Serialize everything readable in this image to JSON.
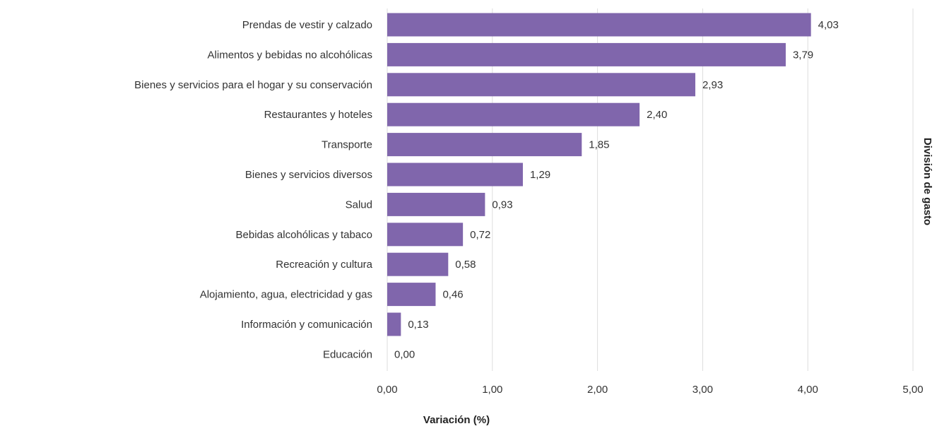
{
  "chart_data": {
    "type": "bar",
    "orientation": "horizontal",
    "categories": [
      "Prendas de vestir y calzado",
      "Alimentos y bebidas no alcohólicas",
      "Bienes y servicios para el hogar y su conservación",
      "Restaurantes y hoteles",
      "Transporte",
      "Bienes y servicios diversos",
      "Salud",
      "Bebidas alcohólicas y tabaco",
      "Recreación y cultura",
      "Alojamiento, agua, electricidad y gas",
      "Información y comunicación",
      "Educación"
    ],
    "values": [
      4.03,
      3.79,
      2.93,
      2.4,
      1.85,
      1.29,
      0.93,
      0.72,
      0.58,
      0.46,
      0.13,
      0.0
    ],
    "value_labels": [
      "4,03",
      "3,79",
      "2,93",
      "2,40",
      "1,85",
      "1,29",
      "0,93",
      "0,72",
      "0,58",
      "0,46",
      "0,13",
      "0,00"
    ],
    "xlabel": "Variación (%)",
    "ylabel": "División de gasto",
    "xlim": [
      0,
      5
    ],
    "xticks": [
      0,
      1,
      2,
      3,
      4,
      5
    ],
    "xtick_labels": [
      "0,00",
      "1,00",
      "2,00",
      "3,00",
      "4,00",
      "5,00"
    ],
    "grid": "vertical",
    "legend": "none",
    "bar_color": "#8066ac",
    "grid_color": "#dddddd",
    "text_color": "#333333"
  }
}
